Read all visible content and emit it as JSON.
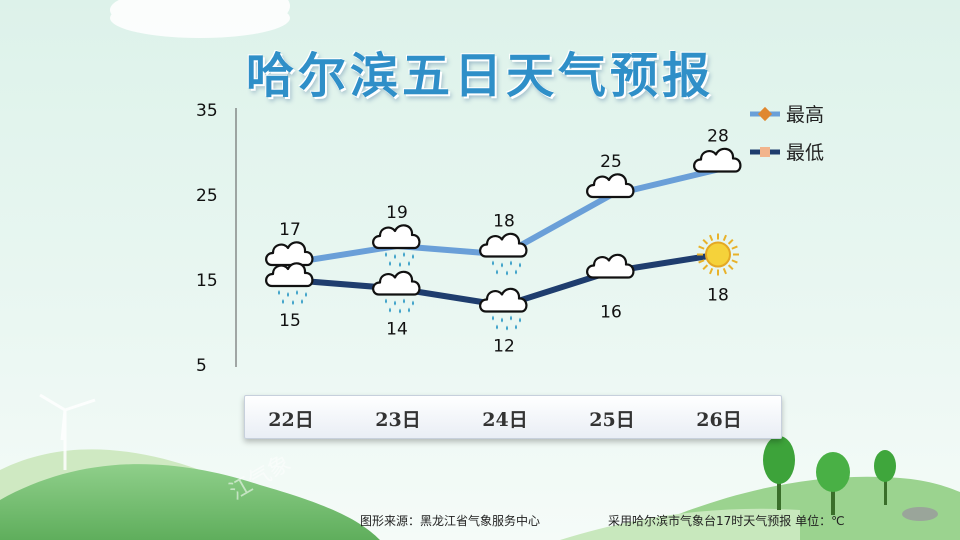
{
  "title": "哈尔滨五日天气预报",
  "footer": {
    "source": "图形来源：黑龙江省气象服务中心",
    "note": "采用哈尔滨市气象台17时天气预报 单位：℃"
  },
  "watermark": "江气象",
  "colors": {
    "high_line": "#6a9fd8",
    "low_line": "#1f3d6e",
    "high_marker": "#e0872f",
    "low_marker": "#f2b48c",
    "title": "#2f8fc8"
  },
  "chart_data": {
    "type": "line",
    "categories": [
      "22日",
      "23日",
      "24日",
      "25日",
      "26日"
    ],
    "series": [
      {
        "name": "最高",
        "values": [
          17,
          19,
          18,
          25,
          28
        ]
      },
      {
        "name": "最低",
        "values": [
          15,
          14,
          12,
          16,
          18
        ]
      }
    ],
    "weather_icons": {
      "high": [
        "cloud-rain-icon",
        "cloud-rain-icon",
        "cloud-rain-icon",
        "cloud-icon",
        "cloud-icon"
      ],
      "low": [
        "cloud-rain-icon",
        "cloud-rain-icon",
        "cloud-rain-icon",
        "cloud-icon",
        "sun-icon"
      ]
    },
    "y_ticks": [
      5,
      15,
      25,
      35
    ],
    "ylim": [
      5,
      35
    ],
    "grid": false,
    "legend": "top-right",
    "title": "哈尔滨五日天气预报",
    "xlabel": "",
    "ylabel": ""
  }
}
